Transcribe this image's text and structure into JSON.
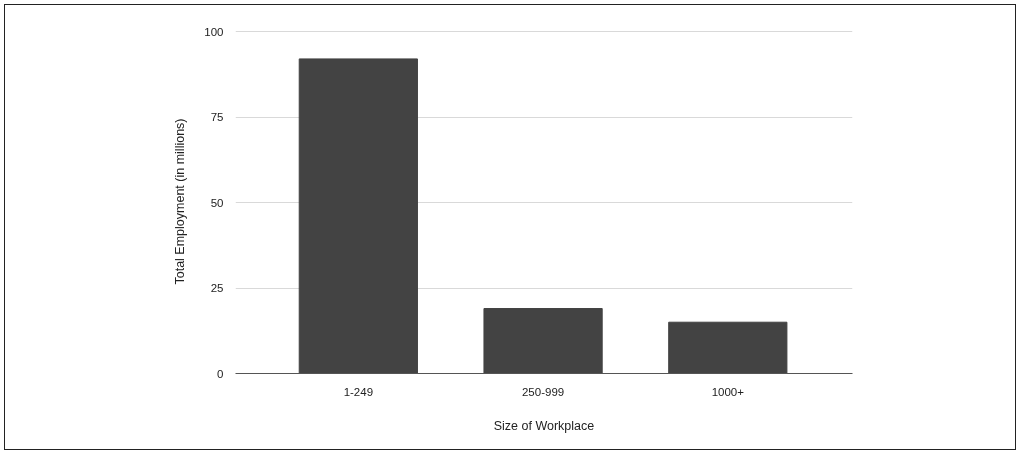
{
  "chart_data": {
    "type": "bar",
    "xlabel": "Size of Workplace",
    "ylabel": "Total Employment (in millions)",
    "categories": [
      "1-249",
      "250-999",
      "1000+"
    ],
    "values": [
      92,
      19,
      15
    ],
    "color": "#434343",
    "ylim": [
      0,
      100
    ],
    "yticks": [
      0,
      25,
      50,
      75,
      100
    ],
    "grid": "y"
  }
}
